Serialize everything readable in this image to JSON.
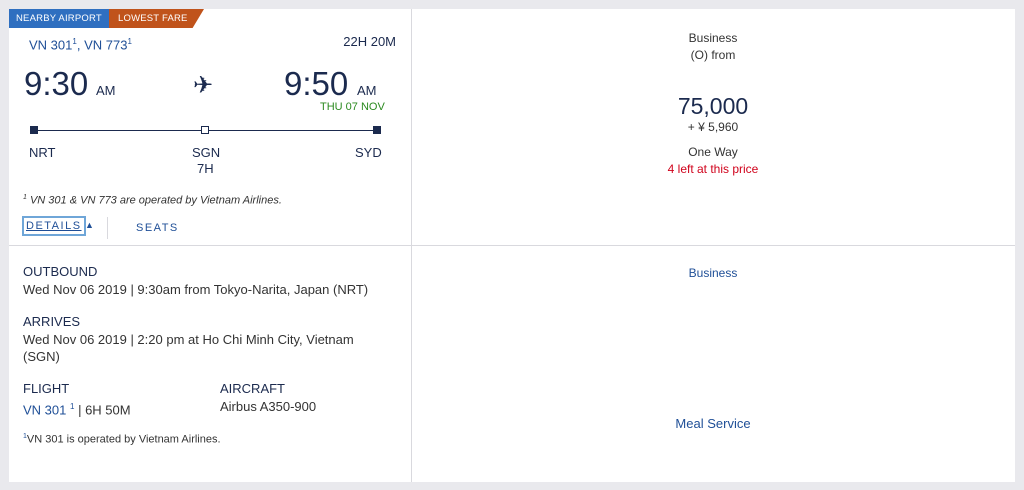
{
  "badges": {
    "nearby": "NEARBY AIRPORT",
    "fare": "LOWEST FARE"
  },
  "flight": {
    "numbers": [
      {
        "num": "VN 301",
        "note": "1"
      },
      {
        "num": "VN 773",
        "note": "1"
      }
    ],
    "duration": "22H 20M",
    "departure": {
      "time": "9:30",
      "ampm": "AM",
      "code": "NRT"
    },
    "arrival": {
      "time": "9:50",
      "ampm": "AM",
      "date": "THU 07 NOV",
      "code": "SYD"
    },
    "stop": {
      "code": "SGN",
      "layover": "7H"
    },
    "operated_note_mark": "1",
    "operated_note": "VN 301 & VN 773 are operated by Vietnam Airlines."
  },
  "tabs": {
    "details": "DETAILS",
    "seats": "SEATS"
  },
  "fare": {
    "cabin": "Business",
    "class": "(O) from",
    "miles": "75,000",
    "taxes": "+ ¥ 5,960",
    "trip": "One Way",
    "availability": "4 left at this price"
  },
  "details": {
    "outbound_label": "OUTBOUND",
    "outbound_text": "Wed Nov 06 2019 | 9:30am from Tokyo-Narita, Japan (NRT)",
    "arrives_label": "ARRIVES",
    "arrives_text": "Wed Nov 06 2019 | 2:20 pm at Ho Chi Minh City, Vietnam (SGN)",
    "flight_label": "FLIGHT",
    "flight_num": "VN 301",
    "flight_note": "1",
    "flight_duration": "| 6H 50M",
    "aircraft_label": "AIRCRAFT",
    "aircraft": "Airbus A350-900",
    "op_note_mark": "1",
    "op_note_prefix": "VN 301 is operated by ",
    "op_note_airline": "Vietnam Airlines",
    "op_note_suffix": "."
  },
  "amenities": {
    "cabin": "Business",
    "meal": "Meal Service"
  },
  "icons": {
    "plane": "airplane-icon",
    "details_toggle": "triangle-up-icon"
  },
  "colors": {
    "link": "#1f4f97",
    "nearby_badge": "#2f6fc0",
    "fare_badge": "#c0531b",
    "arrival_date": "#2b8a1f",
    "alert": "#d0021b"
  }
}
